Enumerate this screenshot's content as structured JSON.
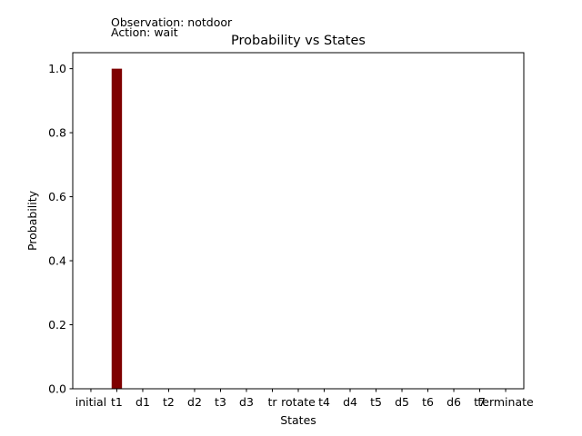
{
  "annotations": {
    "observation": "Observation: notdoor",
    "action": "Action: wait"
  },
  "chart_data": {
    "type": "bar",
    "title": "Probability vs States",
    "xlabel": "States",
    "ylabel": "Probability",
    "categories": [
      "initial",
      "t1",
      "d1",
      "t2",
      "d2",
      "t3",
      "d3",
      "tr",
      "rotate",
      "t4",
      "d4",
      "t5",
      "d5",
      "t6",
      "d6",
      "t7",
      "terminate"
    ],
    "values": [
      0,
      1.0,
      0,
      0,
      0,
      0,
      0,
      0,
      0,
      0,
      0,
      0,
      0,
      0,
      0,
      0,
      0
    ],
    "ylim": [
      0,
      1.05
    ],
    "yticks": [
      "0.0",
      "0.2",
      "0.4",
      "0.6",
      "0.8",
      "1.0"
    ],
    "bar_color": "#7f0000",
    "grid": false,
    "legend": "none"
  }
}
